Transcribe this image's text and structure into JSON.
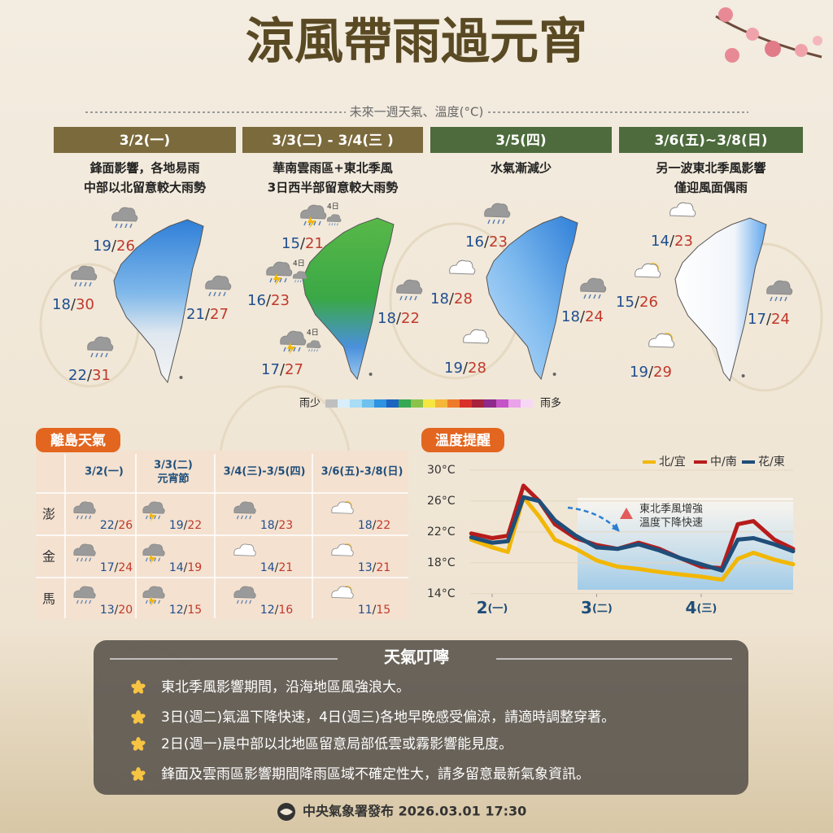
{
  "header": {
    "title": "涼風帶雨過元宵",
    "subtitle": "未來一週天氣、溫度(°C)"
  },
  "forecast": [
    {
      "date": "3/2(一)",
      "lines": [
        "鋒面影響，各地易雨",
        "中部以北留意較大雨勢"
      ],
      "temps": [
        "19/26",
        "18/30",
        "21/27",
        "22/31"
      ]
    },
    {
      "date": "3/3(二) - 3/4(三 )",
      "lines": [
        "華南雲雨區+東北季風",
        "3日西半部留意較大雨勢"
      ],
      "temps": [
        "15/21",
        "16/23",
        "18/22",
        "17/27"
      ],
      "notes": [
        "4日",
        "4日",
        "4日"
      ]
    },
    {
      "date": "3/5(四)",
      "lines": [
        "水氣漸減少"
      ],
      "temps": [
        "16/23",
        "18/28",
        "18/24",
        "19/28"
      ]
    },
    {
      "date": "3/6(五)~3/8(日)",
      "lines": [
        "另一波東北季風影響",
        "僅迎風面偶雨"
      ],
      "temps": [
        "14/23",
        "15/26",
        "17/24",
        "19/29"
      ]
    }
  ],
  "rain_legend": {
    "low": "雨少",
    "high": "雨多"
  },
  "islands": {
    "title": "離島天氣",
    "columns": [
      [
        "3/2(一)"
      ],
      [
        "3/3(二)",
        "元宵節"
      ],
      [
        "3/4(三)-3/5(四)"
      ],
      [
        "3/6(五)-3/8(日)"
      ]
    ],
    "rows": [
      {
        "name": "澎",
        "temps": [
          "22/26",
          "19/22",
          "18/23",
          "18/22"
        ]
      },
      {
        "name": "金",
        "temps": [
          "17/24",
          "14/19",
          "14/21",
          "13/21"
        ]
      },
      {
        "name": "馬",
        "temps": [
          "13/20",
          "12/15",
          "12/16",
          "11/15"
        ]
      }
    ]
  },
  "chart_data": {
    "type": "line",
    "title": "溫度提醒",
    "x": [
      1.8,
      2.0,
      2.15,
      2.3,
      2.45,
      2.6,
      2.8,
      3.0,
      3.2,
      3.4,
      3.6,
      3.8,
      4.0,
      4.2,
      4.35,
      4.5,
      4.7,
      4.88
    ],
    "series": [
      {
        "name": "北/宜",
        "color": "#f2b705",
        "values": [
          21.0,
          20.0,
          19.4,
          26.5,
          24.0,
          21.0,
          19.8,
          18.3,
          17.5,
          17.2,
          16.8,
          16.5,
          16.2,
          15.8,
          18.5,
          19.3,
          18.4,
          17.8
        ]
      },
      {
        "name": "中/南",
        "color": "#b71c1c",
        "values": [
          21.8,
          21.2,
          21.5,
          28.0,
          26.0,
          23.0,
          21.2,
          20.3,
          19.8,
          20.6,
          19.8,
          18.6,
          17.5,
          17.3,
          23.0,
          23.4,
          21.0,
          19.8
        ]
      },
      {
        "name": "花/東",
        "color": "#1f4e79",
        "values": [
          21.3,
          20.6,
          20.8,
          26.5,
          26.0,
          23.5,
          21.5,
          20.0,
          19.8,
          20.4,
          19.6,
          18.6,
          17.8,
          17.0,
          21.0,
          21.2,
          20.4,
          19.5
        ]
      }
    ],
    "xlim": [
      1.79,
      4.88
    ],
    "xticks": [
      {
        "value": 2,
        "label": "2(一)"
      },
      {
        "value": 3,
        "label": "3(二)"
      },
      {
        "value": 4,
        "label": "4(三)"
      }
    ],
    "ylim": [
      12.5,
      31
    ],
    "yticks": [
      {
        "value": 30,
        "label": "30°C"
      },
      {
        "value": 26,
        "label": "26°C"
      },
      {
        "value": 22,
        "label": "22°C"
      },
      {
        "value": 18,
        "label": "18°C"
      },
      {
        "value": 14,
        "label": "14°C"
      }
    ],
    "legend": "upper right",
    "annotation": [
      "東北季風增強",
      "溫度下降快速"
    ]
  },
  "tips": {
    "title": "天氣叮嚀",
    "items": [
      "東北季風影響期間，沿海地區風強浪大。",
      "3日(週二)氣溫下降快速，4日(週三)各地早晚感受偏涼，請適時調整穿著。",
      "2日(週一)晨中部以北地區留意局部低雲或霧影響能見度。",
      "鋒面及雲雨區影響期間降雨區域不確定性大，請多留意最新氣象資訊。"
    ]
  },
  "footer": "中央氣象署發布 2026.03.01 17:30"
}
